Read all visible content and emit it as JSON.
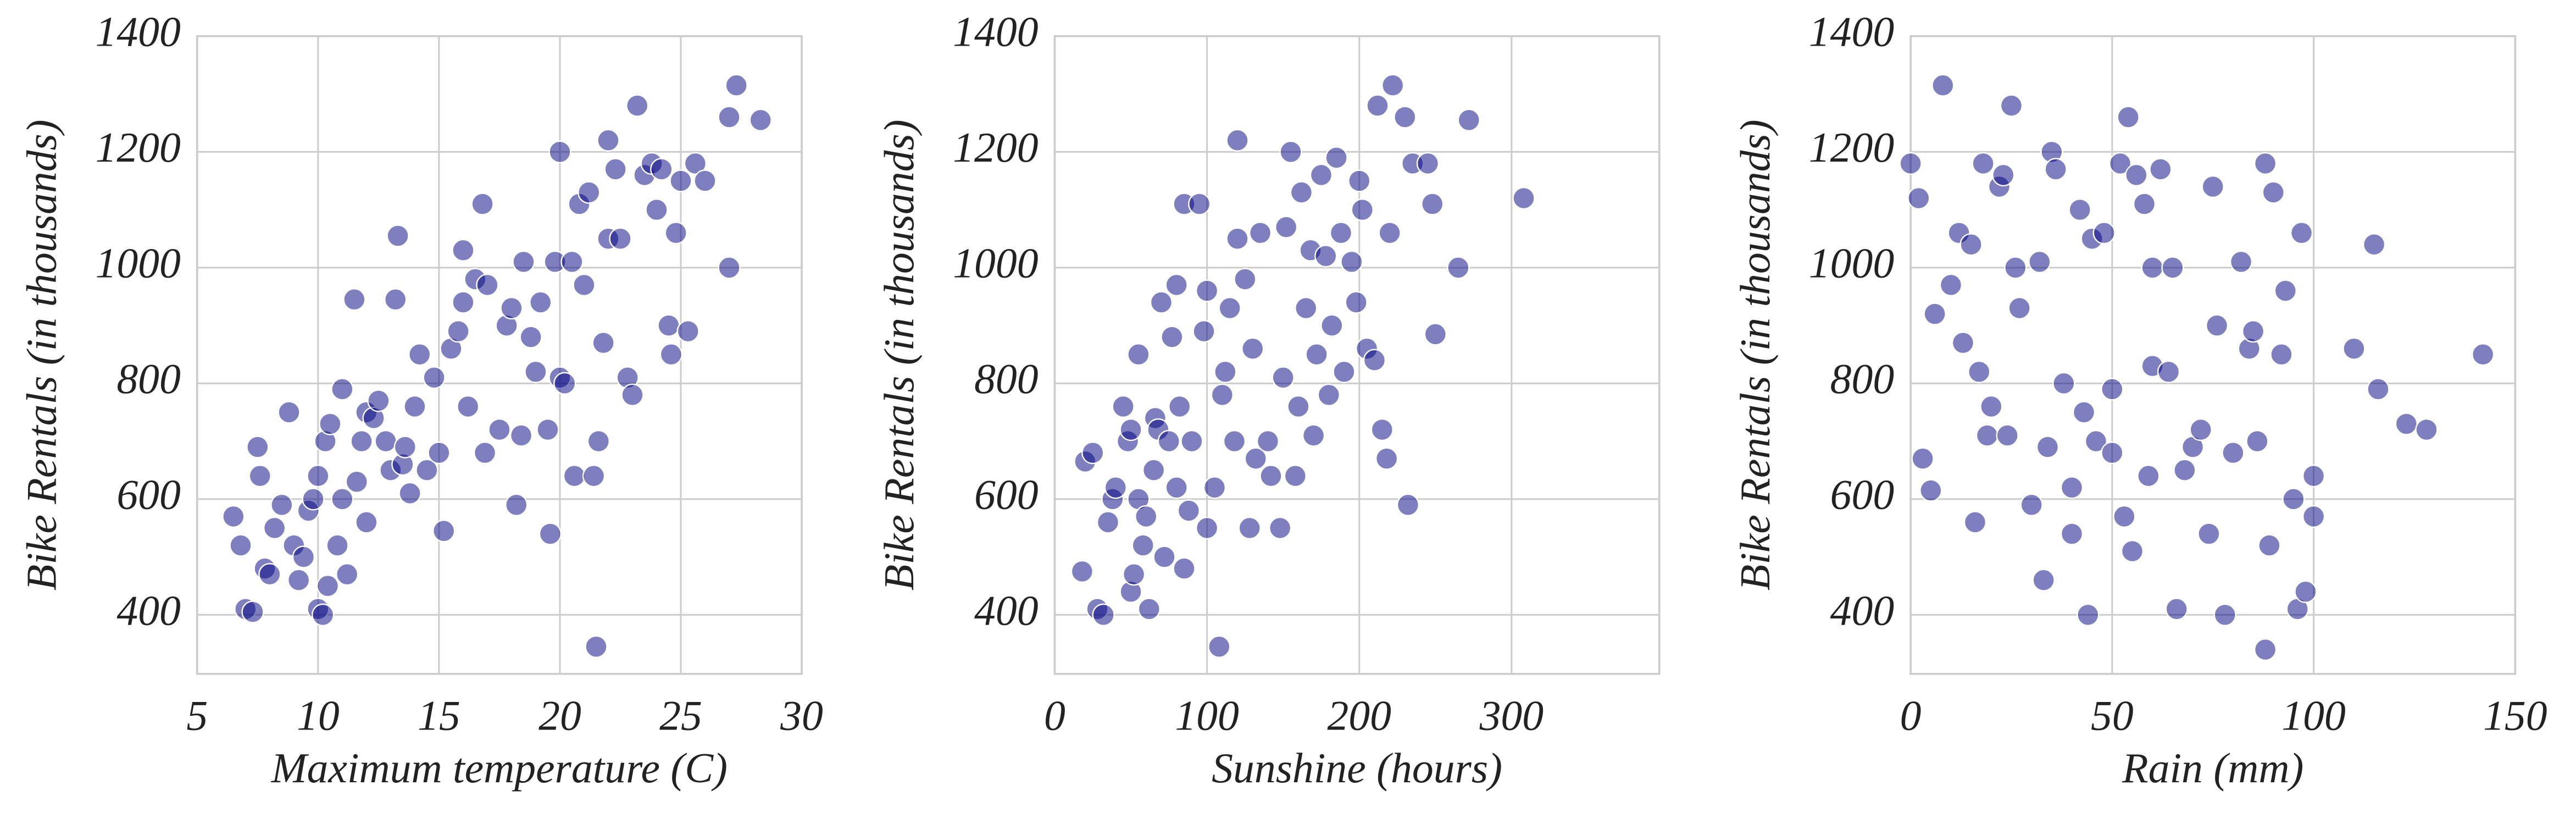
{
  "chart_data": [
    {
      "type": "scatter",
      "xlabel": "Maximum temperature (C)",
      "ylabel": "Bike Rentals (in thousands)",
      "color": "#000080",
      "grid": true,
      "xlim": [
        5,
        30
      ],
      "ylim": [
        298,
        1400
      ],
      "xticks": [
        5,
        10,
        15,
        20,
        25,
        30
      ],
      "yticks": [
        400,
        600,
        800,
        1000,
        1200,
        1400
      ],
      "x": [
        6.5,
        6.8,
        7,
        7.3,
        7.5,
        7.6,
        7.8,
        8,
        8.2,
        8.5,
        8.8,
        9,
        9.2,
        9.4,
        9.6,
        9.8,
        10,
        10,
        10.2,
        10.3,
        10.4,
        10.5,
        10.8,
        11,
        11,
        11.2,
        11.5,
        11.6,
        11.8,
        12,
        12,
        12.3,
        12.5,
        12.8,
        13,
        13.2,
        13.3,
        13.5,
        13.6,
        13.8,
        14,
        14.2,
        14.5,
        14.8,
        15,
        15.2,
        15.5,
        15.8,
        16,
        16,
        16.2,
        16.5,
        16.8,
        16.9,
        17,
        17.5,
        17.8,
        18,
        18.2,
        18.4,
        18.5,
        18.8,
        19,
        19.2,
        19.5,
        19.6,
        19.8,
        20,
        20,
        20.2,
        20.5,
        20.6,
        20.8,
        21,
        21.2,
        21.4,
        21.5,
        21.6,
        21.8,
        22,
        22,
        22.3,
        22.5,
        22.8,
        23,
        23.2,
        23.5,
        23.8,
        24,
        24.2,
        24.5,
        24.6,
        24.8,
        25,
        25.3,
        25.6,
        26,
        27,
        27,
        27.3,
        28.3
      ],
      "y": [
        570,
        520,
        410,
        405,
        690,
        640,
        480,
        470,
        550,
        590,
        750,
        520,
        460,
        500,
        580,
        600,
        640,
        410,
        400,
        700,
        450,
        730,
        520,
        600,
        790,
        470,
        945,
        630,
        700,
        560,
        750,
        740,
        770,
        700,
        650,
        945,
        1055,
        660,
        690,
        610,
        760,
        850,
        650,
        810,
        680,
        545,
        860,
        890,
        940,
        1030,
        760,
        980,
        1110,
        680,
        970,
        720,
        900,
        930,
        590,
        710,
        1010,
        880,
        820,
        940,
        720,
        540,
        1010,
        1200,
        810,
        800,
        1010,
        640,
        1110,
        970,
        1130,
        640,
        345,
        700,
        870,
        1220,
        1050,
        1170,
        1050,
        810,
        780,
        1280,
        1160,
        1180,
        1100,
        1170,
        900,
        850,
        1060,
        1150,
        890,
        1180,
        1150,
        1000,
        1260,
        1315,
        1255
      ]
    },
    {
      "type": "scatter",
      "xlabel": "Sunshine (hours)",
      "ylabel": "Bike Rentals (in thousands)",
      "color": "#000080",
      "grid": true,
      "xlim": [
        0,
        397
      ],
      "ylim": [
        298,
        1400
      ],
      "xticks": [
        0,
        100,
        200,
        300
      ],
      "yticks": [
        400,
        600,
        800,
        1000,
        1200,
        1400
      ],
      "x": [
        18,
        20,
        25,
        28,
        32,
        35,
        38,
        40,
        45,
        48,
        50,
        50,
        52,
        55,
        55,
        58,
        60,
        62,
        65,
        66,
        68,
        70,
        72,
        75,
        77,
        80,
        80,
        82,
        85,
        85,
        88,
        90,
        95,
        98,
        100,
        100,
        105,
        108,
        110,
        112,
        115,
        118,
        120,
        120,
        125,
        128,
        130,
        132,
        135,
        140,
        142,
        148,
        150,
        152,
        155,
        158,
        160,
        162,
        165,
        168,
        170,
        172,
        175,
        178,
        180,
        182,
        185,
        188,
        190,
        195,
        198,
        200,
        202,
        205,
        210,
        212,
        215,
        218,
        220,
        222,
        230,
        232,
        235,
        245,
        248,
        250,
        265,
        272,
        308
      ],
      "y": [
        475,
        665,
        680,
        410,
        400,
        560,
        600,
        620,
        760,
        700,
        440,
        720,
        470,
        600,
        850,
        520,
        570,
        410,
        650,
        740,
        720,
        940,
        500,
        700,
        880,
        620,
        970,
        760,
        1110,
        480,
        580,
        700,
        1110,
        890,
        960,
        550,
        620,
        345,
        780,
        820,
        930,
        700,
        1220,
        1050,
        980,
        550,
        860,
        670,
        1060,
        700,
        640,
        550,
        810,
        1070,
        1200,
        640,
        760,
        1130,
        930,
        1030,
        710,
        850,
        1160,
        1020,
        780,
        900,
        1190,
        1060,
        820,
        1010,
        940,
        1150,
        1100,
        860,
        840,
        1280,
        720,
        670,
        1060,
        1315,
        1260,
        590,
        1180,
        1180,
        1110,
        885,
        1000,
        1255,
        1120
      ]
    },
    {
      "type": "scatter",
      "xlabel": "Rain (mm)",
      "ylabel": "Bike Rentals (in thousands)",
      "color": "#000080",
      "grid": true,
      "xlim": [
        0,
        150
      ],
      "ylim": [
        298,
        1400
      ],
      "xticks": [
        0,
        50,
        100,
        150
      ],
      "yticks": [
        400,
        600,
        800,
        1000,
        1200,
        1400
      ],
      "x": [
        0,
        2,
        3,
        5,
        6,
        8,
        10,
        12,
        13,
        15,
        16,
        17,
        18,
        19,
        20,
        22,
        23,
        24,
        25,
        26,
        27,
        30,
        32,
        33,
        34,
        35,
        36,
        38,
        40,
        40,
        42,
        43,
        44,
        45,
        46,
        48,
        50,
        50,
        52,
        53,
        54,
        55,
        56,
        58,
        59,
        60,
        60,
        62,
        64,
        65,
        66,
        68,
        70,
        72,
        74,
        75,
        76,
        78,
        80,
        82,
        84,
        85,
        86,
        88,
        88,
        89,
        90,
        92,
        93,
        95,
        96,
        97,
        98,
        100,
        100,
        110,
        115,
        116,
        123,
        128,
        142
      ],
      "y": [
        1180,
        1120,
        670,
        615,
        920,
        1315,
        970,
        1060,
        870,
        1040,
        560,
        820,
        1180,
        710,
        760,
        1140,
        1160,
        710,
        1280,
        1000,
        930,
        590,
        1010,
        460,
        690,
        1200,
        1170,
        800,
        620,
        540,
        1100,
        750,
        400,
        1050,
        700,
        1060,
        790,
        680,
        1180,
        570,
        1260,
        510,
        1160,
        1110,
        640,
        1000,
        830,
        1170,
        820,
        1000,
        410,
        650,
        690,
        720,
        540,
        1140,
        900,
        400,
        680,
        1010,
        860,
        890,
        700,
        340,
        1180,
        520,
        1130,
        850,
        960,
        600,
        410,
        1060,
        440,
        570,
        640,
        860,
        1040,
        790,
        730,
        720,
        850
      ]
    }
  ]
}
